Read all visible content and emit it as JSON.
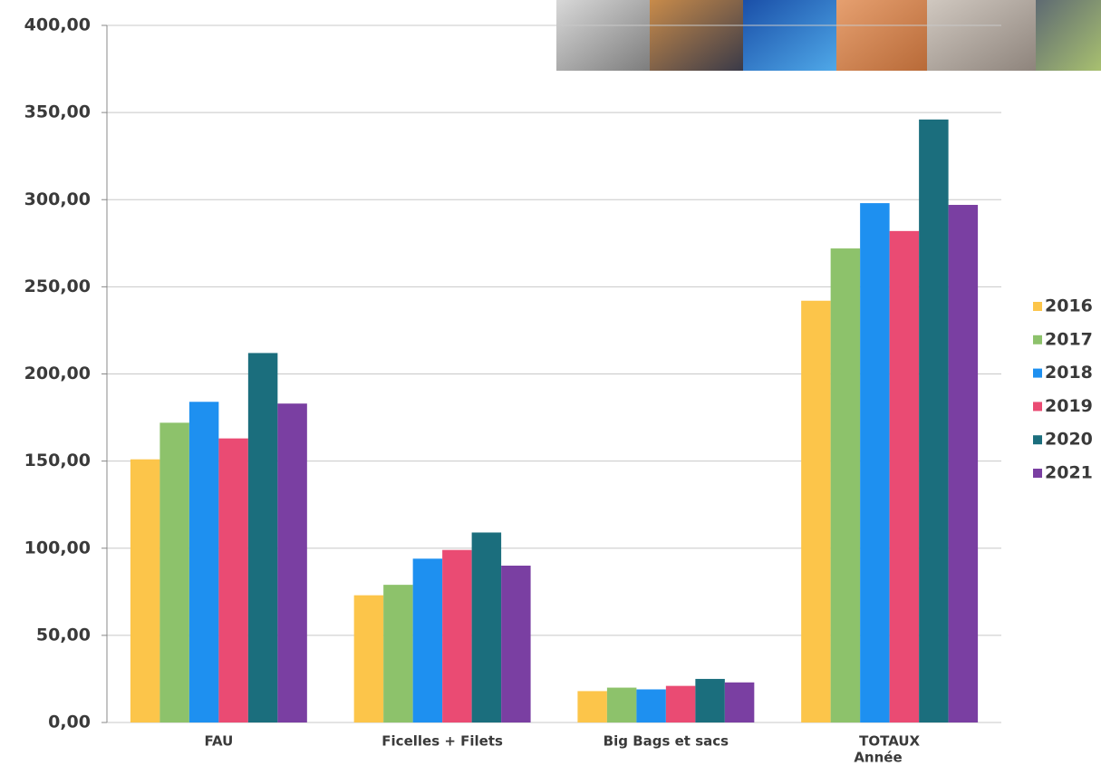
{
  "chart_data": {
    "type": "bar",
    "x_label": "Année",
    "categories": [
      "FAU",
      "Ficelles + Filets",
      "Big Bags et sacs",
      "TOTAUX"
    ],
    "series": [
      {
        "name": "2016",
        "color": "#fcc54a",
        "values": [
          151,
          73,
          18,
          242
        ]
      },
      {
        "name": "2017",
        "color": "#8dc26b",
        "values": [
          172,
          79,
          20,
          272
        ]
      },
      {
        "name": "2018",
        "color": "#1e90f0",
        "values": [
          184,
          94,
          19,
          298
        ]
      },
      {
        "name": "2019",
        "color": "#ea4b73",
        "values": [
          163,
          99,
          21,
          282
        ]
      },
      {
        "name": "2020",
        "color": "#1b6e7d",
        "values": [
          212,
          109,
          25,
          346
        ]
      },
      {
        "name": "2021",
        "color": "#7a3fa2",
        "values": [
          183,
          90,
          23,
          297
        ]
      }
    ],
    "ylim": [
      0,
      400
    ],
    "yticks": [
      {
        "value": 0,
        "label": "0,00"
      },
      {
        "value": 50,
        "label": "50,00"
      },
      {
        "value": 100,
        "label": "100,00"
      },
      {
        "value": 150,
        "label": "150,00"
      },
      {
        "value": 200,
        "label": "200,00"
      },
      {
        "value": 250,
        "label": "250,00"
      },
      {
        "value": 300,
        "label": "300,00"
      },
      {
        "value": 350,
        "label": "350,00"
      },
      {
        "value": 400,
        "label": "400,00"
      }
    ],
    "grid": true,
    "legend_position": "right"
  }
}
